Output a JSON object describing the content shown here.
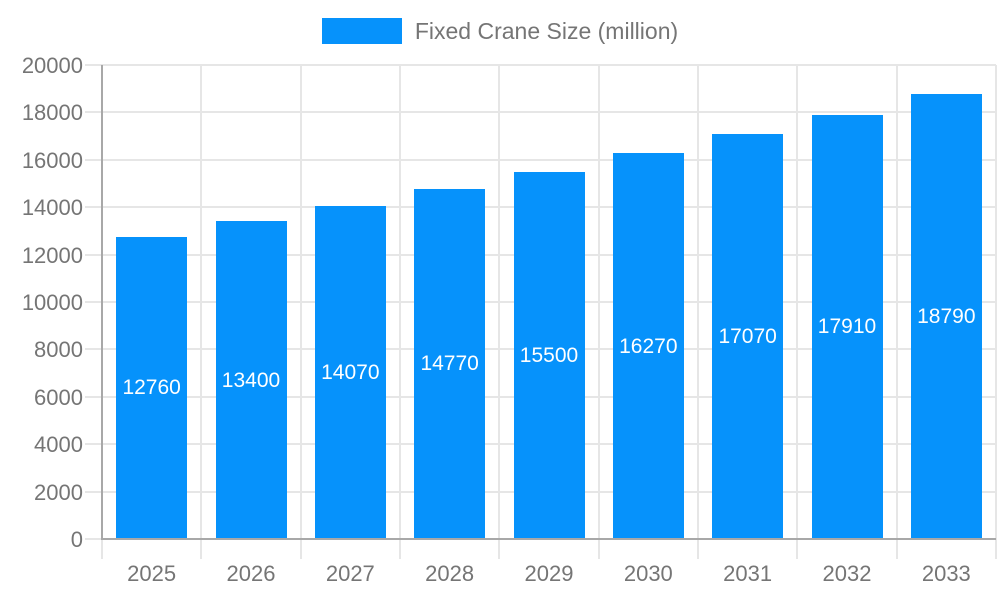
{
  "legend": {
    "label": "Fixed Crane Size (million)"
  },
  "chart_data": {
    "type": "bar",
    "categories": [
      "2025",
      "2026",
      "2027",
      "2028",
      "2029",
      "2030",
      "2031",
      "2032",
      "2033"
    ],
    "values": [
      12760,
      13400,
      14070,
      14770,
      15500,
      16270,
      17070,
      17910,
      18790
    ],
    "series": [
      {
        "name": "Fixed Crane Size (million)",
        "values": [
          12760,
          13400,
          14070,
          14770,
          15500,
          16270,
          17070,
          17910,
          18790
        ]
      }
    ],
    "value_labels": [
      "12760",
      "13400",
      "14070",
      "14770",
      "15500",
      "16270",
      "17070",
      "17910",
      "18790"
    ],
    "y_ticks": [
      0,
      2000,
      4000,
      6000,
      8000,
      10000,
      12000,
      14000,
      16000,
      18000,
      20000
    ],
    "ylim": [
      0,
      20000
    ],
    "xlabel": "",
    "ylabel": "",
    "grid": true,
    "legend_position": "top",
    "bar_color": "#0692fb",
    "value_label_color": "#ffffff",
    "axis_text_color": "#757575",
    "grid_color": "#e6e6e6",
    "axis_line_color": "#a8a8a8"
  }
}
